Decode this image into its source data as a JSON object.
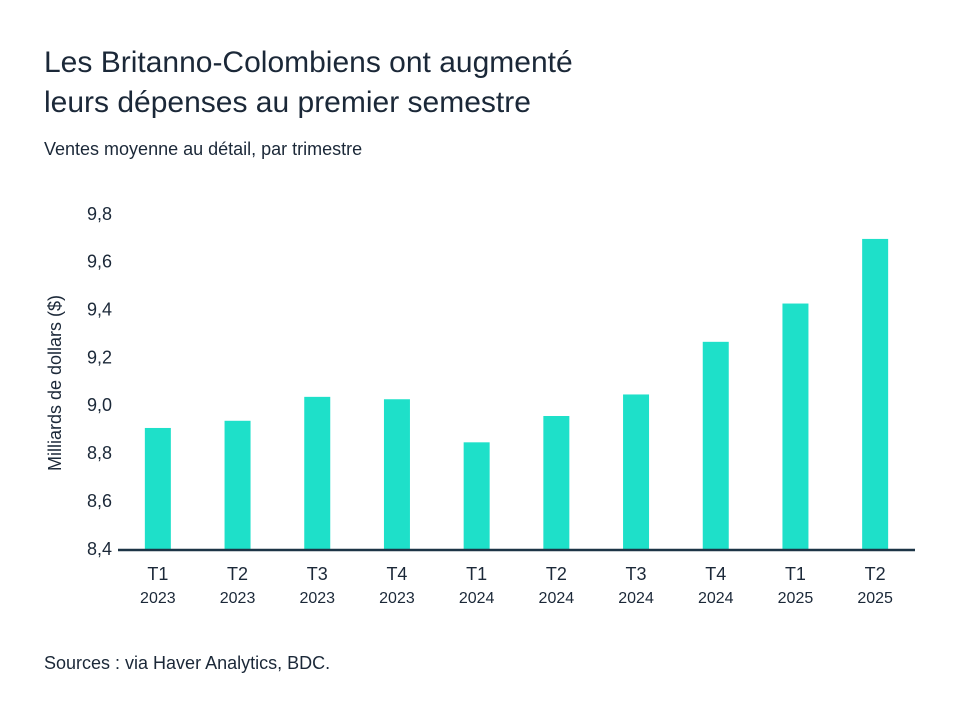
{
  "chart_data": {
    "type": "bar",
    "title": [
      "Les Britanno-Colombiens ont augmenté",
      "leurs dépenses au premier semestre"
    ],
    "subtitle": "Ventes moyenne au détail, par trimestre",
    "ylabel": "Milliards de dollars ($)",
    "source": "Sources : via Haver Analytics, BDC.",
    "categories": [
      [
        "T1",
        "2023"
      ],
      [
        "T2",
        "2023"
      ],
      [
        "T3",
        "2023"
      ],
      [
        "T4",
        "2023"
      ],
      [
        "T1",
        "2024"
      ],
      [
        "T2",
        "2024"
      ],
      [
        "T3",
        "2024"
      ],
      [
        "T4",
        "2024"
      ],
      [
        "T1",
        "2025"
      ],
      [
        "T2",
        "2025"
      ]
    ],
    "values": [
      8.91,
      8.94,
      9.04,
      9.03,
      8.85,
      8.96,
      9.05,
      9.27,
      9.43,
      9.7
    ],
    "color": "#1ee0c9",
    "ylim": [
      8.4,
      9.8
    ],
    "yticks": [
      {
        "value": 8.4,
        "label": "8,4"
      },
      {
        "value": 8.6,
        "label": "8,6"
      },
      {
        "value": 8.8,
        "label": "8,8"
      },
      {
        "value": 9.0,
        "label": "9,0"
      },
      {
        "value": 9.2,
        "label": "9,2"
      },
      {
        "value": 9.4,
        "label": "9,4"
      },
      {
        "value": 9.6,
        "label": "9,6"
      },
      {
        "value": 9.8,
        "label": "9,8"
      }
    ],
    "grid": false
  }
}
